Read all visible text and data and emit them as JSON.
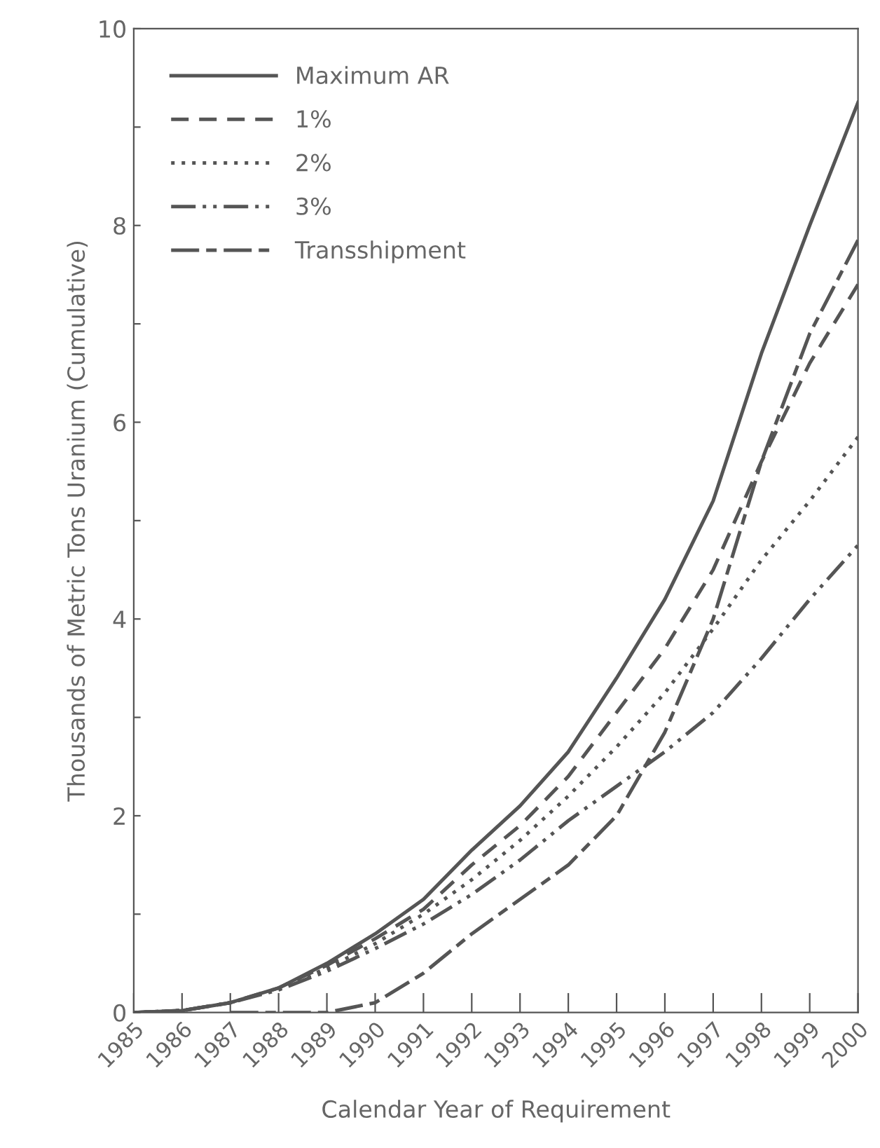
{
  "chart_data": {
    "type": "line",
    "xlabel": "Calendar Year of Requirement",
    "ylabel": "Thousands of Metric Tons Uranium (Cumulative)",
    "x": [
      1985,
      1986,
      1987,
      1988,
      1989,
      1990,
      1991,
      1992,
      1993,
      1994,
      1995,
      1996,
      1997,
      1998,
      1999,
      2000
    ],
    "xlim": [
      1985,
      2000
    ],
    "xticks": [
      1985,
      1986,
      1987,
      1988,
      1989,
      1990,
      1991,
      1992,
      1993,
      1994,
      1995,
      1996,
      1997,
      1998,
      1999,
      2000
    ],
    "ylim": [
      0,
      10
    ],
    "yticks": [
      0,
      {
        "value": 1,
        "label": null
      },
      2,
      {
        "value": 3,
        "label": null
      },
      4,
      {
        "value": 5,
        "label": null
      },
      6,
      {
        "value": 7,
        "label": null
      },
      8,
      {
        "value": 9,
        "label": null
      },
      10
    ],
    "grid": false,
    "legend": "top left",
    "marker": "none",
    "series": [
      {
        "name": "Maximum AR",
        "color": "#555555",
        "line_style": "solid",
        "values": [
          0,
          0.02,
          0.1,
          0.25,
          0.5,
          0.8,
          1.15,
          1.65,
          2.1,
          2.65,
          3.4,
          4.2,
          5.2,
          6.7,
          8.0,
          9.25
        ]
      },
      {
        "name": "1%",
        "color": "#555555",
        "line_style": "dashed",
        "values": [
          0,
          0.02,
          0.1,
          0.25,
          0.48,
          0.75,
          1.05,
          1.5,
          1.9,
          2.4,
          3.05,
          3.7,
          4.5,
          5.6,
          6.6,
          7.4
        ]
      },
      {
        "name": "2%",
        "color": "#555555",
        "line_style": "dotted",
        "values": [
          0,
          0.02,
          0.1,
          0.24,
          0.45,
          0.7,
          1.0,
          1.35,
          1.75,
          2.2,
          2.7,
          3.25,
          3.9,
          4.6,
          5.2,
          5.85
        ]
      },
      {
        "name": "3%",
        "color": "#555555",
        "line_style": "dashdotdot",
        "values": [
          0,
          0.02,
          0.1,
          0.23,
          0.42,
          0.65,
          0.9,
          1.2,
          1.55,
          1.95,
          2.3,
          2.65,
          3.05,
          3.6,
          4.2,
          4.75
        ]
      },
      {
        "name": "Transshipment",
        "color": "#555555",
        "line_style": "longdash",
        "values": [
          null,
          null,
          0,
          0,
          0,
          0.1,
          0.4,
          0.8,
          1.15,
          1.5,
          2.0,
          2.85,
          4.0,
          5.6,
          6.9,
          7.85
        ]
      }
    ]
  }
}
